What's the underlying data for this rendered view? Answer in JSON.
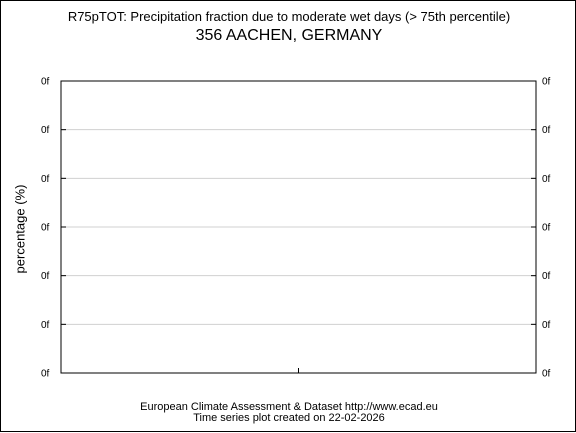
{
  "chart_data": {
    "type": "line",
    "title": "R75pTOT: Precipitation fraction due to moderate wet days (> 75th percentile)",
    "subtitle": "356 AACHEN, GERMANY",
    "ylabel": "percentage (%)",
    "xlabel": "",
    "y_ticks": [
      "0f",
      "0f",
      "0f",
      "0f",
      "0f",
      "0f",
      "0f"
    ],
    "y_ticks_right": [
      "0f",
      "0f",
      "0f",
      "0f",
      "0f",
      "0f",
      "0f"
    ],
    "x_ticks": [],
    "series": [],
    "grid": true,
    "legend": "none"
  },
  "footer": {
    "line1": "European Climate Assessment & Dataset  http://www.ecad.eu",
    "line2": "Time series plot created on 22-02-2026"
  }
}
